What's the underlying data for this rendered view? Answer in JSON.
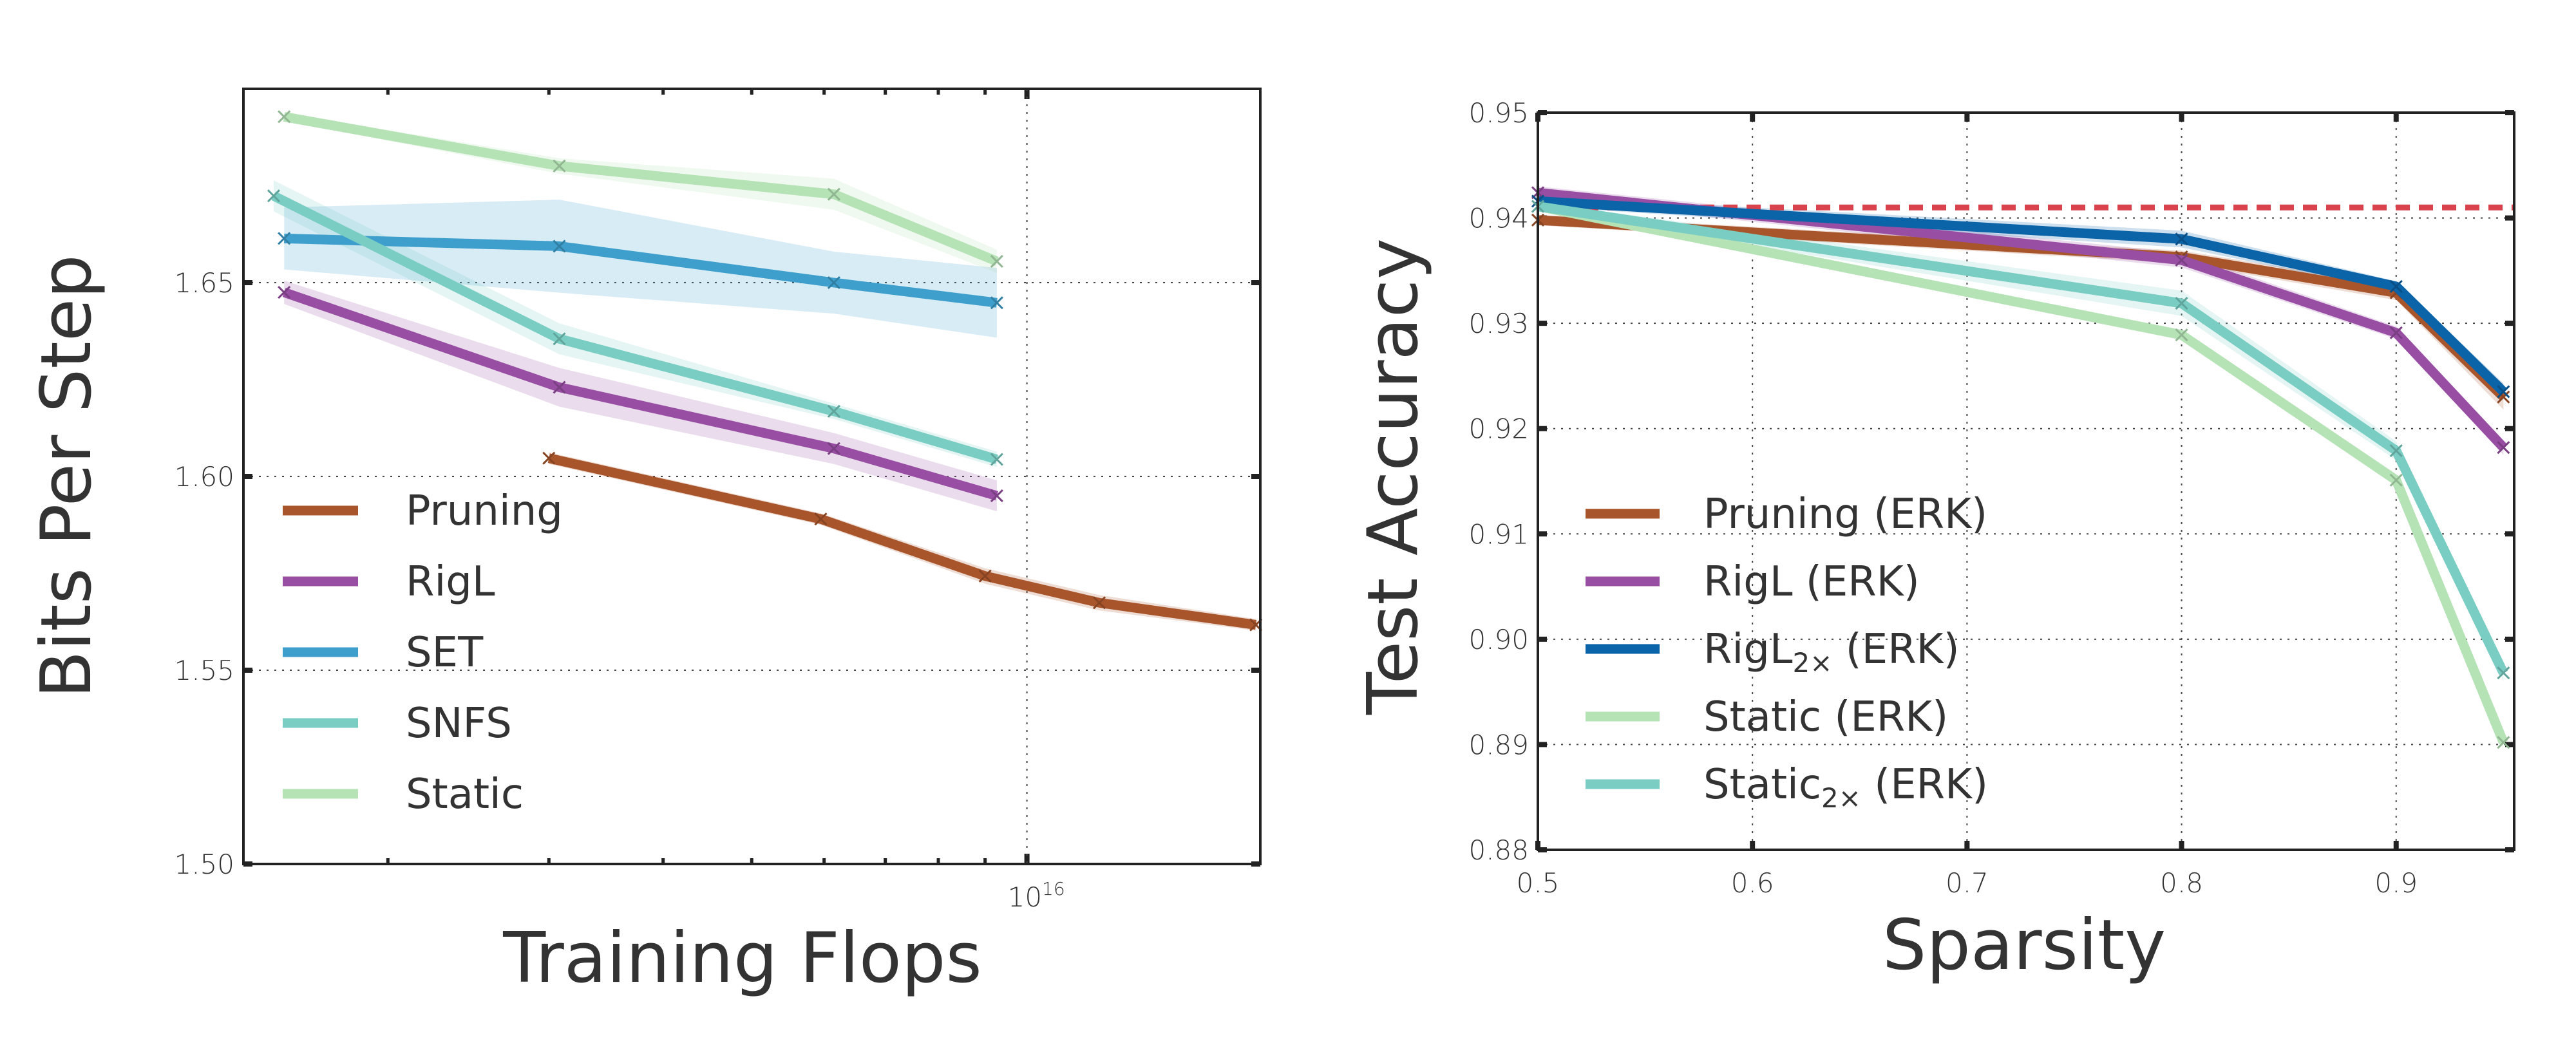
{
  "chart_data": [
    {
      "type": "line",
      "xlabel": "Training Flops",
      "ylabel": "Bits Per Step",
      "xscale": "log",
      "xlim": [
        1390000000000000.0,
        1.8e+16
      ],
      "ylim": [
        1.5,
        1.7
      ],
      "yticks": [
        1.5,
        1.55,
        1.6,
        1.65
      ],
      "ytick_labels": [
        "1.50",
        "1.55",
        "1.60",
        "1.65"
      ],
      "xticks_major": [
        {
          "value": 1e+16,
          "base": "10",
          "exp": "16"
        }
      ],
      "grid": true,
      "legend": "lower-left",
      "series": [
        {
          "name": "Pruning",
          "color": "#a9552b",
          "x": [
            3000000000000000.0,
            5950000000000000.0,
            9000000000000000.0,
            1.2e+16,
            1.78e+16
          ],
          "y": [
            1.6047,
            1.589,
            1.5743,
            1.5674,
            1.5617
          ],
          "band": [
            0.0015,
            0.0015,
            0.002,
            0.002,
            0.0015
          ]
        },
        {
          "name": "RigL",
          "color": "#984ea3",
          "x": [
            1540000000000000.0,
            3080000000000000.0,
            6150000000000000.0,
            9270000000000000.0
          ],
          "y": [
            1.6475,
            1.623,
            1.6072,
            1.595
          ],
          "band": [
            0.003,
            0.005,
            0.004,
            0.004
          ]
        },
        {
          "name": "SET",
          "color": "#3e9fcd",
          "x": [
            1540000000000000.0,
            3080000000000000.0,
            6150000000000000.0,
            9270000000000000.0
          ],
          "y": [
            1.6614,
            1.6594,
            1.65,
            1.6448
          ],
          "band": [
            0.008,
            0.012,
            0.008,
            0.009
          ]
        },
        {
          "name": "SNFS",
          "color": "#79cdc3",
          "x": [
            1500000000000000.0,
            3080000000000000.0,
            6150000000000000.0,
            9270000000000000.0
          ],
          "y": [
            1.6724,
            1.6355,
            1.6168,
            1.6044
          ],
          "band": [
            0.004,
            0.004,
            0.002,
            0.002
          ]
        },
        {
          "name": "Static",
          "color": "#b5e3b6",
          "x": [
            1540000000000000.0,
            3080000000000000.0,
            6150000000000000.0,
            9270000000000000.0
          ],
          "y": [
            1.6928,
            1.6801,
            1.6728,
            1.6555
          ],
          "band": [
            0.001,
            0.002,
            0.004,
            0.003
          ]
        }
      ]
    },
    {
      "type": "line",
      "xlabel": "Sparsity",
      "ylabel": "Test Accuracy",
      "xlim": [
        0.5,
        0.955
      ],
      "ylim": [
        0.88,
        0.95
      ],
      "xticks": [
        0.5,
        0.6,
        0.7,
        0.8,
        0.9
      ],
      "xtick_labels": [
        "0.5",
        "0.6",
        "0.7",
        "0.8",
        "0.9"
      ],
      "yticks": [
        0.88,
        0.89,
        0.9,
        0.91,
        0.92,
        0.93,
        0.94,
        0.95
      ],
      "ytick_labels": [
        "0.88",
        "0.89",
        "0.90",
        "0.91",
        "0.92",
        "0.93",
        "0.94",
        "0.95"
      ],
      "grid": true,
      "legend": "lower-left",
      "baseline": {
        "y": 0.941,
        "color": "#d8434e",
        "style": "dashed"
      },
      "series": [
        {
          "name": "Pruning",
          "subscript": "",
          "suffix": " (ERK)",
          "color": "#a9552b",
          "x": [
            0.5,
            0.8,
            0.9,
            0.95
          ],
          "y": [
            0.9398,
            0.9363,
            0.9329,
            0.923
          ],
          "band": [
            0.0005,
            0.0006,
            0.0007,
            0.0012
          ]
        },
        {
          "name": "RigL",
          "subscript": "",
          "suffix": " (ERK)",
          "color": "#984ea3",
          "x": [
            0.5,
            0.8,
            0.9,
            0.95
          ],
          "y": [
            0.9424,
            0.936,
            0.9291,
            0.9182
          ],
          "band": [
            0.0006,
            0.0007,
            0.0006,
            0.0007
          ]
        },
        {
          "name": "RigL",
          "subscript": "2×",
          "suffix": "  (ERK)",
          "color": "#0b63a8",
          "x": [
            0.5,
            0.8,
            0.9,
            0.95
          ],
          "y": [
            0.9416,
            0.938,
            0.9335,
            0.9235
          ],
          "band": [
            0.0005,
            0.0008,
            0.0005,
            0.0008
          ]
        },
        {
          "name": "Static",
          "subscript": "",
          "suffix": " (ERK)",
          "color": "#b5e3b6",
          "x": [
            0.5,
            0.8,
            0.9,
            0.95
          ],
          "y": [
            0.9411,
            0.9289,
            0.9151,
            0.8902
          ],
          "band": [
            0.0004,
            0.0005,
            0.0006,
            0.0008
          ]
        },
        {
          "name": "Static",
          "subscript": "2×",
          "suffix": "  (ERK)",
          "color": "#79cdc3",
          "x": [
            0.5,
            0.8,
            0.9,
            0.95
          ],
          "y": [
            0.9411,
            0.9319,
            0.9179,
            0.8968
          ],
          "band": [
            0.0004,
            0.0012,
            0.0009,
            0.0008
          ]
        }
      ]
    }
  ]
}
